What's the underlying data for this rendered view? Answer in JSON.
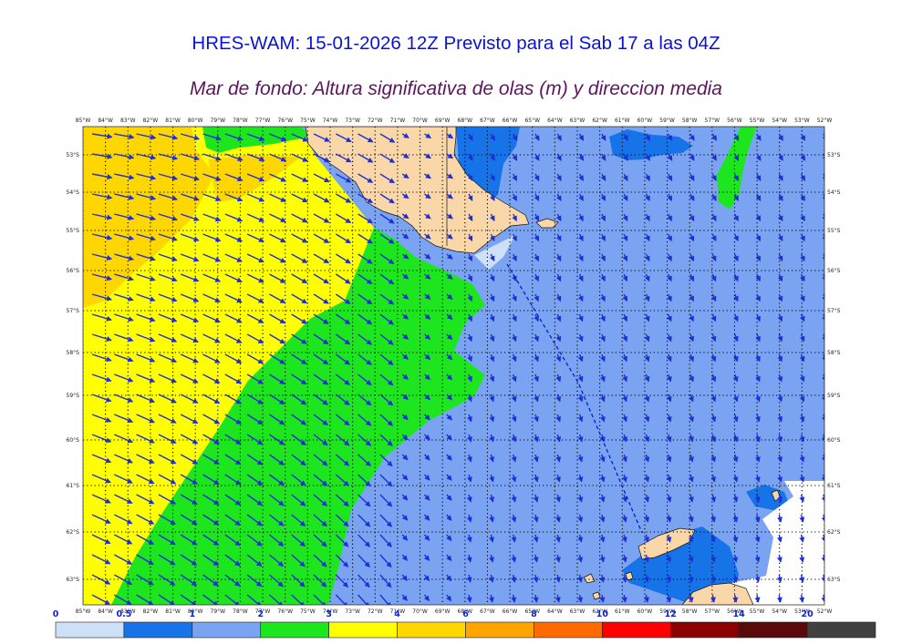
{
  "title": "HRES-WAM: 15-01-2026 12Z Previsto para el Sab 17 a las 04Z",
  "subtitle": "Mar de fondo: Altura significativa de olas (m) y direccion media",
  "map": {
    "lon_labels": [
      "85°W",
      "84°W",
      "83°W",
      "82°W",
      "81°W",
      "80°W",
      "79°W",
      "78°W",
      "77°W",
      "76°W",
      "75°W",
      "74°W",
      "73°W",
      "72°W",
      "71°W",
      "70°W",
      "69°W",
      "68°W",
      "67°W",
      "66°W",
      "65°W",
      "64°W",
      "63°W",
      "62°W",
      "61°W",
      "60°W",
      "59°W",
      "58°W",
      "57°W",
      "56°W",
      "55°W",
      "54°W",
      "53°W",
      "52°W"
    ],
    "lat_labels": [
      "53°S",
      "54°S",
      "55°S",
      "56°S",
      "57°S",
      "58°S",
      "59°S",
      "60°S",
      "61°S",
      "62°S",
      "63°S"
    ]
  },
  "colorbar": {
    "ticks": [
      "0",
      "0.5",
      "1",
      "2",
      "3",
      "4",
      "6",
      "8",
      "10",
      "12",
      "14",
      "20"
    ],
    "colors": [
      "#cde0f7",
      "#1673e8",
      "#7aa4f2",
      "#1ee61e",
      "#ffff00",
      "#ffd700",
      "#ffa500",
      "#ff6a00",
      "#ff0000",
      "#8b0000",
      "#5a0a0a"
    ],
    "extend_color": "#404040"
  },
  "colors": {
    "title": "#0a14cf",
    "subtitle": "#5e1460",
    "arrows": "#1f2ed6",
    "land": "#f9d7a9",
    "track": "#0c1ac8"
  }
}
